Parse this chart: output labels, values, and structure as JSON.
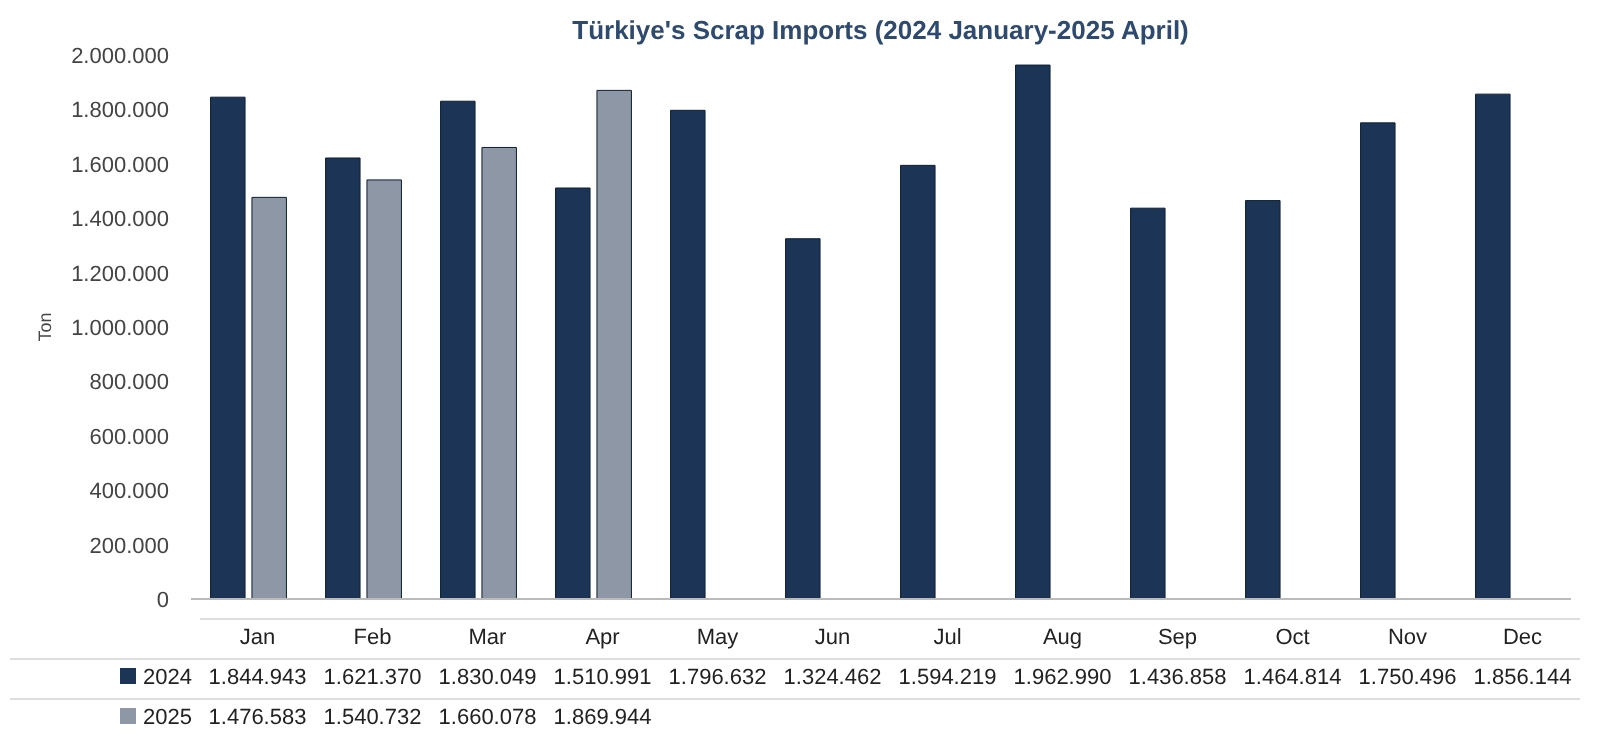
{
  "chart_data": {
    "type": "bar",
    "title": "Türkiye's Scrap Imports (2024 January-2025 April)",
    "ylabel": "Ton",
    "categories": [
      "Jan",
      "Feb",
      "Mar",
      "Apr",
      "May",
      "Jun",
      "Jul",
      "Aug",
      "Sep",
      "Oct",
      "Nov",
      "Dec"
    ],
    "series": [
      {
        "name": "2024",
        "color": "#1c3556",
        "values": [
          1844943,
          1621370,
          1830049,
          1510991,
          1796632,
          1324462,
          1594219,
          1962990,
          1436858,
          1464814,
          1750496,
          1856144
        ],
        "value_labels": [
          "1.844.943",
          "1.621.370",
          "1.830.049",
          "1.510.991",
          "1.796.632",
          "1.324.462",
          "1.594.219",
          "1.962.990",
          "1.436.858",
          "1.464.814",
          "1.750.496",
          "1.856.144"
        ]
      },
      {
        "name": "2025",
        "color": "#8d97a6",
        "values": [
          1476583,
          1540732,
          1660078,
          1869944,
          null,
          null,
          null,
          null,
          null,
          null,
          null,
          null
        ],
        "value_labels": [
          "1.476.583",
          "1.540.732",
          "1.660.078",
          "1.869.944",
          null,
          null,
          null,
          null,
          null,
          null,
          null,
          null
        ]
      }
    ],
    "ylim": [
      0,
      2000000
    ],
    "yticks": [
      {
        "value": 0,
        "label": "0"
      },
      {
        "value": 200000,
        "label": "200.000"
      },
      {
        "value": 400000,
        "label": "400.000"
      },
      {
        "value": 600000,
        "label": "600.000"
      },
      {
        "value": 800000,
        "label": "800.000"
      },
      {
        "value": 1000000,
        "label": "1.000.000"
      },
      {
        "value": 1200000,
        "label": "1.200.000"
      },
      {
        "value": 1400000,
        "label": "1.400.000"
      },
      {
        "value": 1600000,
        "label": "1.600.000"
      },
      {
        "value": 1800000,
        "label": "1.800.000"
      },
      {
        "value": 2000000,
        "label": "2.000.000"
      }
    ],
    "grid": false,
    "legend": "bottom"
  }
}
